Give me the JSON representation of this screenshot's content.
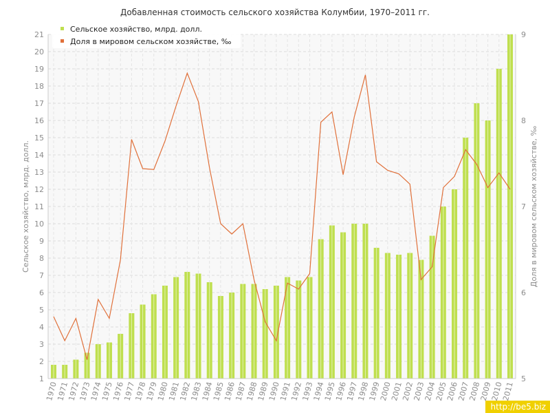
{
  "chart_data": {
    "type": "bar",
    "title": "Добавленная стоимость сельского хозяйства Колумбии, 1970–2011 гг.",
    "ylabel": "Сельское хозяйство, млрд. долл.",
    "y2label": "Доля в мировом сельском хозяйстве, ‰",
    "ylim": [
      1,
      21
    ],
    "y2lim": [
      5,
      9
    ],
    "yticks": [
      "1",
      "2",
      "3",
      "4",
      "5",
      "6",
      "7",
      "8",
      "9",
      "10",
      "11",
      "12",
      "13",
      "14",
      "15",
      "16",
      "17",
      "18",
      "19",
      "20",
      "21"
    ],
    "y2ticks": [
      "5",
      "6",
      "7",
      "8",
      "9"
    ],
    "grid": true,
    "legend_position": "top-left",
    "categories": [
      "1970",
      "1971",
      "1972",
      "1973",
      "1974",
      "1975",
      "1976",
      "1977",
      "1978",
      "1979",
      "1980",
      "1981",
      "1982",
      "1983",
      "1984",
      "1985",
      "1986",
      "1987",
      "1988",
      "1989",
      "1990",
      "1991",
      "1992",
      "1993",
      "1994",
      "1995",
      "1996",
      "1997",
      "1998",
      "1999",
      "2000",
      "2001",
      "2002",
      "2003",
      "2004",
      "2005",
      "2006",
      "2007",
      "2008",
      "2009",
      "2010",
      "2011"
    ],
    "series": [
      {
        "name": "Сельское хозяйство, млрд. долл.",
        "type": "bar",
        "axis": "left",
        "color": "#bfdf4f",
        "values": [
          1.8,
          1.8,
          2.1,
          2.5,
          3.0,
          3.1,
          3.6,
          4.8,
          5.3,
          5.9,
          6.4,
          6.9,
          7.2,
          7.1,
          6.6,
          5.8,
          6.0,
          6.5,
          6.5,
          6.2,
          6.4,
          6.9,
          6.7,
          6.9,
          9.1,
          9.9,
          9.5,
          10.0,
          10.0,
          8.6,
          8.3,
          8.2,
          8.3,
          7.9,
          9.3,
          11.0,
          12.0,
          15.0,
          17.0,
          16.0,
          19.0,
          21.0
        ]
      },
      {
        "name": "Доля в мировом сельском хозяйстве, ‰",
        "type": "line",
        "axis": "right",
        "color": "#e0703a",
        "values": [
          5.72,
          5.44,
          5.7,
          5.22,
          5.92,
          5.7,
          6.38,
          7.78,
          7.44,
          7.43,
          7.76,
          8.17,
          8.55,
          8.22,
          7.45,
          6.8,
          6.68,
          6.8,
          6.15,
          5.66,
          5.44,
          6.11,
          6.04,
          6.22,
          7.98,
          8.1,
          7.37,
          8.04,
          8.53,
          7.52,
          7.42,
          7.38,
          7.26,
          6.15,
          6.3,
          7.22,
          7.35,
          7.66,
          7.49,
          7.22,
          7.39,
          7.2
        ]
      }
    ]
  },
  "watermark": "http://be5.biz"
}
